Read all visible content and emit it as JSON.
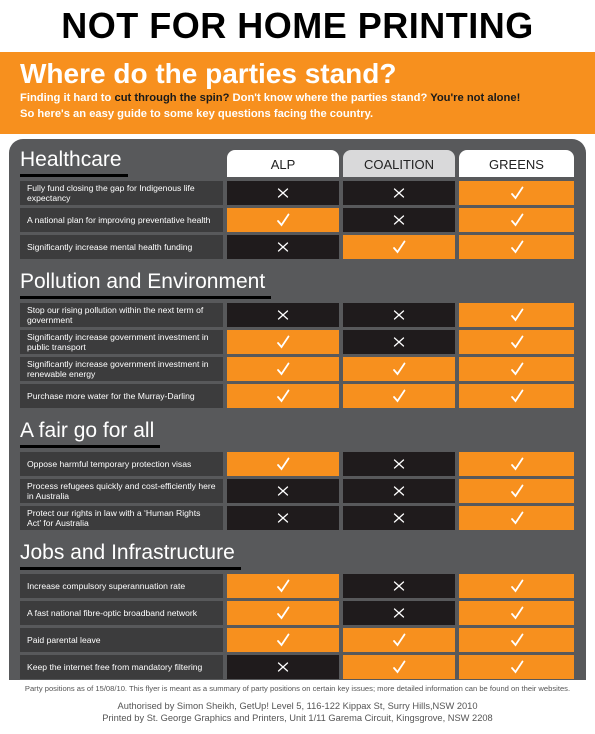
{
  "header": {
    "banner": "NOT FOR HOME PRINTING",
    "title": "Where do the parties stand?",
    "intro": [
      "Finding it hard to ",
      "cut through the spin?",
      " Don't know where the parties stand? ",
      "You're not alone!"
    ],
    "intro_line2": "So here's an easy guide to some key questions facing the country."
  },
  "columns": [
    "ALP",
    "COALITION",
    "GREENS"
  ],
  "sections": [
    {
      "title": "Healthcare",
      "rows": [
        {
          "question": "Fully fund closing the gap for Indigenous life expectancy",
          "support": [
            false,
            false,
            true
          ]
        },
        {
          "question": "A national plan for improving preventative health",
          "support": [
            true,
            false,
            true
          ]
        },
        {
          "question": "Significantly increase mental health funding",
          "support": [
            false,
            true,
            true
          ]
        }
      ]
    },
    {
      "title": "Pollution and Environment",
      "rows": [
        {
          "question": "Stop our rising pollution within the next term of government",
          "support": [
            false,
            false,
            true
          ]
        },
        {
          "question": "Significantly increase government investment in public transport",
          "support": [
            true,
            false,
            true
          ]
        },
        {
          "question": "Significantly increase government investment in renewable energy",
          "support": [
            true,
            true,
            true
          ]
        },
        {
          "question": "Purchase more water for the Murray-Darling",
          "support": [
            true,
            true,
            true
          ]
        }
      ]
    },
    {
      "title": "A fair go for all",
      "rows": [
        {
          "question": "Oppose harmful temporary protection visas",
          "support": [
            true,
            false,
            true
          ]
        },
        {
          "question": "Process refugees quickly and cost-efficiently here in Australia",
          "support": [
            false,
            false,
            true
          ]
        },
        {
          "question": "Protect our rights in law with a ‘Human Rights Act’ for Australia",
          "support": [
            false,
            false,
            true
          ]
        }
      ]
    },
    {
      "title": "Jobs and Infrastructure",
      "rows": [
        {
          "question": "Increase compulsory superannuation rate",
          "support": [
            true,
            false,
            true
          ]
        },
        {
          "question": "A fast national fibre-optic broadband network",
          "support": [
            true,
            false,
            true
          ]
        },
        {
          "question": "Paid parental leave",
          "support": [
            true,
            true,
            true
          ]
        },
        {
          "question": "Keep the internet free from mandatory filtering",
          "support": [
            false,
            true,
            true
          ]
        }
      ]
    }
  ],
  "footer": {
    "note": "Party positions as of 15/08/10. This flyer is meant as a summary of party positions on certain key issues; more detailed information can be found on their websites.",
    "authorised": "Authorised by Simon Sheikh, GetUp! Level 5, 116-122 Kippax St, Surry Hills,NSW 2010",
    "printed": "Printed by St. George Graphics and Printers, Unit 1/11 Garema Circuit, Kingsgrove, NSW 2208"
  }
}
